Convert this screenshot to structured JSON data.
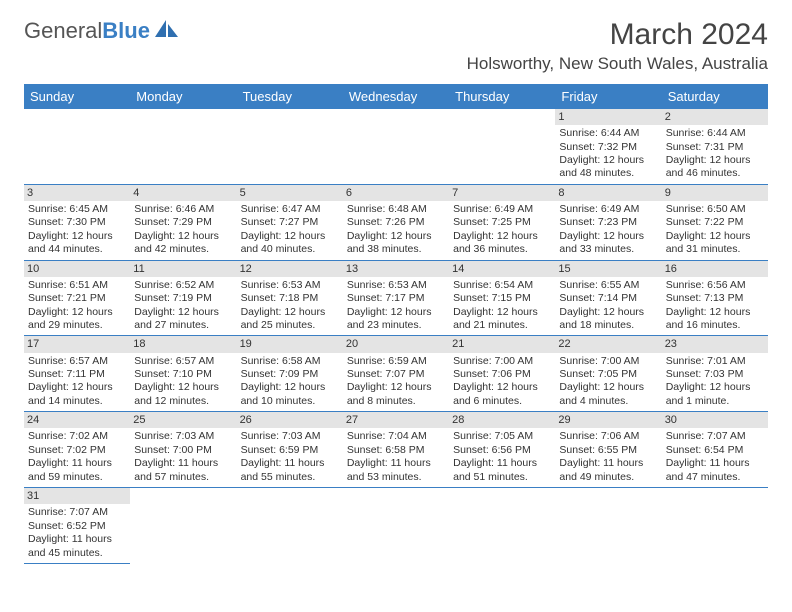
{
  "logo": {
    "general": "General",
    "blue": "Blue"
  },
  "title": "March 2024",
  "location": "Holsworthy, New South Wales, Australia",
  "colors": {
    "header_bg": "#3a7fc4",
    "header_fg": "#ffffff",
    "daynum_bg": "#e4e4e4",
    "border": "#3a7fc4",
    "text": "#333333"
  },
  "dayHeaders": [
    "Sunday",
    "Monday",
    "Tuesday",
    "Wednesday",
    "Thursday",
    "Friday",
    "Saturday"
  ],
  "cells": [
    {
      "day": "",
      "sunrise": "",
      "sunset": "",
      "daylight": ""
    },
    {
      "day": "",
      "sunrise": "",
      "sunset": "",
      "daylight": ""
    },
    {
      "day": "",
      "sunrise": "",
      "sunset": "",
      "daylight": ""
    },
    {
      "day": "",
      "sunrise": "",
      "sunset": "",
      "daylight": ""
    },
    {
      "day": "",
      "sunrise": "",
      "sunset": "",
      "daylight": ""
    },
    {
      "day": "1",
      "sunrise": "Sunrise: 6:44 AM",
      "sunset": "Sunset: 7:32 PM",
      "daylight": "Daylight: 12 hours and 48 minutes."
    },
    {
      "day": "2",
      "sunrise": "Sunrise: 6:44 AM",
      "sunset": "Sunset: 7:31 PM",
      "daylight": "Daylight: 12 hours and 46 minutes."
    },
    {
      "day": "3",
      "sunrise": "Sunrise: 6:45 AM",
      "sunset": "Sunset: 7:30 PM",
      "daylight": "Daylight: 12 hours and 44 minutes."
    },
    {
      "day": "4",
      "sunrise": "Sunrise: 6:46 AM",
      "sunset": "Sunset: 7:29 PM",
      "daylight": "Daylight: 12 hours and 42 minutes."
    },
    {
      "day": "5",
      "sunrise": "Sunrise: 6:47 AM",
      "sunset": "Sunset: 7:27 PM",
      "daylight": "Daylight: 12 hours and 40 minutes."
    },
    {
      "day": "6",
      "sunrise": "Sunrise: 6:48 AM",
      "sunset": "Sunset: 7:26 PM",
      "daylight": "Daylight: 12 hours and 38 minutes."
    },
    {
      "day": "7",
      "sunrise": "Sunrise: 6:49 AM",
      "sunset": "Sunset: 7:25 PM",
      "daylight": "Daylight: 12 hours and 36 minutes."
    },
    {
      "day": "8",
      "sunrise": "Sunrise: 6:49 AM",
      "sunset": "Sunset: 7:23 PM",
      "daylight": "Daylight: 12 hours and 33 minutes."
    },
    {
      "day": "9",
      "sunrise": "Sunrise: 6:50 AM",
      "sunset": "Sunset: 7:22 PM",
      "daylight": "Daylight: 12 hours and 31 minutes."
    },
    {
      "day": "10",
      "sunrise": "Sunrise: 6:51 AM",
      "sunset": "Sunset: 7:21 PM",
      "daylight": "Daylight: 12 hours and 29 minutes."
    },
    {
      "day": "11",
      "sunrise": "Sunrise: 6:52 AM",
      "sunset": "Sunset: 7:19 PM",
      "daylight": "Daylight: 12 hours and 27 minutes."
    },
    {
      "day": "12",
      "sunrise": "Sunrise: 6:53 AM",
      "sunset": "Sunset: 7:18 PM",
      "daylight": "Daylight: 12 hours and 25 minutes."
    },
    {
      "day": "13",
      "sunrise": "Sunrise: 6:53 AM",
      "sunset": "Sunset: 7:17 PM",
      "daylight": "Daylight: 12 hours and 23 minutes."
    },
    {
      "day": "14",
      "sunrise": "Sunrise: 6:54 AM",
      "sunset": "Sunset: 7:15 PM",
      "daylight": "Daylight: 12 hours and 21 minutes."
    },
    {
      "day": "15",
      "sunrise": "Sunrise: 6:55 AM",
      "sunset": "Sunset: 7:14 PM",
      "daylight": "Daylight: 12 hours and 18 minutes."
    },
    {
      "day": "16",
      "sunrise": "Sunrise: 6:56 AM",
      "sunset": "Sunset: 7:13 PM",
      "daylight": "Daylight: 12 hours and 16 minutes."
    },
    {
      "day": "17",
      "sunrise": "Sunrise: 6:57 AM",
      "sunset": "Sunset: 7:11 PM",
      "daylight": "Daylight: 12 hours and 14 minutes."
    },
    {
      "day": "18",
      "sunrise": "Sunrise: 6:57 AM",
      "sunset": "Sunset: 7:10 PM",
      "daylight": "Daylight: 12 hours and 12 minutes."
    },
    {
      "day": "19",
      "sunrise": "Sunrise: 6:58 AM",
      "sunset": "Sunset: 7:09 PM",
      "daylight": "Daylight: 12 hours and 10 minutes."
    },
    {
      "day": "20",
      "sunrise": "Sunrise: 6:59 AM",
      "sunset": "Sunset: 7:07 PM",
      "daylight": "Daylight: 12 hours and 8 minutes."
    },
    {
      "day": "21",
      "sunrise": "Sunrise: 7:00 AM",
      "sunset": "Sunset: 7:06 PM",
      "daylight": "Daylight: 12 hours and 6 minutes."
    },
    {
      "day": "22",
      "sunrise": "Sunrise: 7:00 AM",
      "sunset": "Sunset: 7:05 PM",
      "daylight": "Daylight: 12 hours and 4 minutes."
    },
    {
      "day": "23",
      "sunrise": "Sunrise: 7:01 AM",
      "sunset": "Sunset: 7:03 PM",
      "daylight": "Daylight: 12 hours and 1 minute."
    },
    {
      "day": "24",
      "sunrise": "Sunrise: 7:02 AM",
      "sunset": "Sunset: 7:02 PM",
      "daylight": "Daylight: 11 hours and 59 minutes."
    },
    {
      "day": "25",
      "sunrise": "Sunrise: 7:03 AM",
      "sunset": "Sunset: 7:00 PM",
      "daylight": "Daylight: 11 hours and 57 minutes."
    },
    {
      "day": "26",
      "sunrise": "Sunrise: 7:03 AM",
      "sunset": "Sunset: 6:59 PM",
      "daylight": "Daylight: 11 hours and 55 minutes."
    },
    {
      "day": "27",
      "sunrise": "Sunrise: 7:04 AM",
      "sunset": "Sunset: 6:58 PM",
      "daylight": "Daylight: 11 hours and 53 minutes."
    },
    {
      "day": "28",
      "sunrise": "Sunrise: 7:05 AM",
      "sunset": "Sunset: 6:56 PM",
      "daylight": "Daylight: 11 hours and 51 minutes."
    },
    {
      "day": "29",
      "sunrise": "Sunrise: 7:06 AM",
      "sunset": "Sunset: 6:55 PM",
      "daylight": "Daylight: 11 hours and 49 minutes."
    },
    {
      "day": "30",
      "sunrise": "Sunrise: 7:07 AM",
      "sunset": "Sunset: 6:54 PM",
      "daylight": "Daylight: 11 hours and 47 minutes."
    },
    {
      "day": "31",
      "sunrise": "Sunrise: 7:07 AM",
      "sunset": "Sunset: 6:52 PM",
      "daylight": "Daylight: 11 hours and 45 minutes."
    },
    {
      "day": "",
      "sunrise": "",
      "sunset": "",
      "daylight": ""
    },
    {
      "day": "",
      "sunrise": "",
      "sunset": "",
      "daylight": ""
    },
    {
      "day": "",
      "sunrise": "",
      "sunset": "",
      "daylight": ""
    },
    {
      "day": "",
      "sunrise": "",
      "sunset": "",
      "daylight": ""
    },
    {
      "day": "",
      "sunrise": "",
      "sunset": "",
      "daylight": ""
    },
    {
      "day": "",
      "sunrise": "",
      "sunset": "",
      "daylight": ""
    }
  ]
}
